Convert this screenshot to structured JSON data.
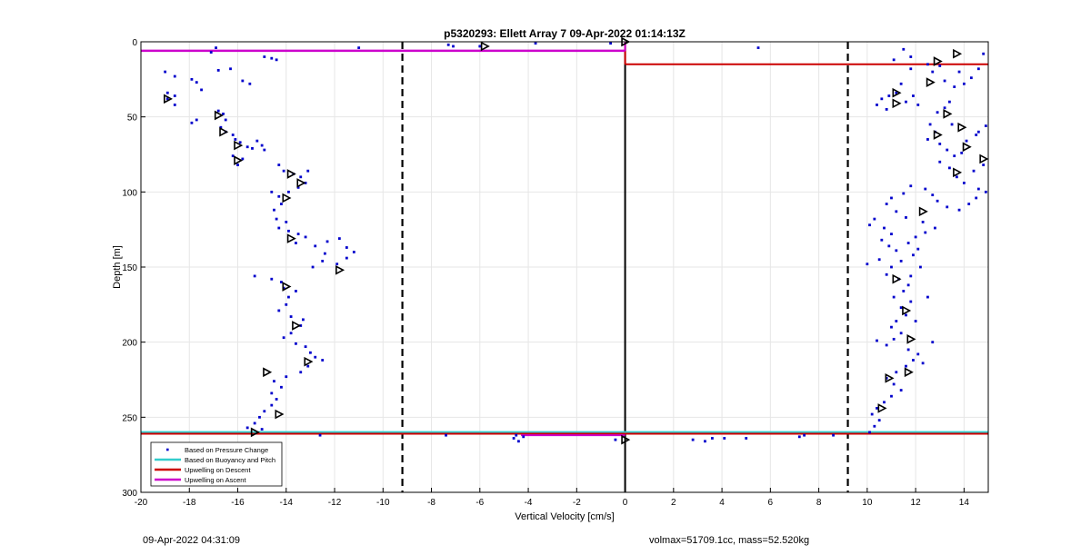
{
  "footer": {
    "timestamp": "09-Apr-2022 04:31:09",
    "mass_info": "volmax=51709.1cc, mass=52.520kg"
  },
  "colors": {
    "pressure": "#0000cc",
    "buoyancy": "#33cccc",
    "descent": "#cc0000",
    "ascent": "#cc00cc",
    "axes": "#000000",
    "grid": "#e6e6e6"
  },
  "chart_data": {
    "type": "scatter",
    "title": "p5320293: Ellett Array 7 09-Apr-2022 01:14:13Z",
    "xlabel": "Vertical Velocity [cm/s]",
    "ylabel": "Depth [m]",
    "xlim": [
      -20,
      15
    ],
    "ylim": [
      0,
      300
    ],
    "y_reversed": true,
    "grid": true,
    "xticks": [
      "-20",
      "-18",
      "-16",
      "-14",
      "-12",
      "-10",
      "-8",
      "-6",
      "-4",
      "-2",
      "0",
      "2",
      "4",
      "6",
      "8",
      "10",
      "12",
      "14"
    ],
    "yticks": [
      "0",
      "50",
      "100",
      "150",
      "200",
      "250",
      "300"
    ],
    "legend": {
      "position": "bottom-left",
      "entries": [
        "Based on Pressure Change",
        "Based on Buoyancy and Pitch",
        "Upwelling on Descent",
        "Upwelling on Ascent"
      ]
    },
    "dashed_lines_x": [
      -9.2,
      9.2
    ],
    "zero_line_x": 0,
    "series": [
      {
        "name": "Based on Pressure Change",
        "marker": "dot",
        "points": [
          [
            -19,
            20
          ],
          [
            -18.6,
            23
          ],
          [
            -18.9,
            34
          ],
          [
            -18.6,
            36
          ],
          [
            -18.9,
            38
          ],
          [
            -18.6,
            42
          ],
          [
            -17.7,
            27
          ],
          [
            -17.5,
            32
          ],
          [
            -17.9,
            25
          ],
          [
            -17.1,
            7
          ],
          [
            -16.9,
            4
          ],
          [
            -16.8,
            19
          ],
          [
            -16.3,
            18
          ],
          [
            -15.8,
            26
          ],
          [
            -15.5,
            28
          ],
          [
            -14.9,
            10
          ],
          [
            -14.6,
            11
          ],
          [
            -14.4,
            12
          ],
          [
            -17.7,
            52
          ],
          [
            -17.9,
            54
          ],
          [
            -16.8,
            46
          ],
          [
            -16.6,
            48
          ],
          [
            -16.5,
            52
          ],
          [
            -16.7,
            57
          ],
          [
            -16.5,
            60
          ],
          [
            -16.2,
            62
          ],
          [
            -16.1,
            65
          ],
          [
            -15.9,
            67
          ],
          [
            -15.6,
            70
          ],
          [
            -15.4,
            71
          ],
          [
            -15.2,
            66
          ],
          [
            -15.0,
            69
          ],
          [
            -14.9,
            72
          ],
          [
            -16.2,
            76
          ],
          [
            -15.8,
            78
          ],
          [
            -16.0,
            82
          ],
          [
            -14.3,
            82
          ],
          [
            -14.1,
            86
          ],
          [
            -13.7,
            88
          ],
          [
            -13.4,
            90
          ],
          [
            -13.1,
            86
          ],
          [
            -13.2,
            94
          ],
          [
            -13.5,
            97
          ],
          [
            -13.9,
            100
          ],
          [
            -14.3,
            103
          ],
          [
            -14.6,
            100
          ],
          [
            -14.2,
            108
          ],
          [
            -14.5,
            112
          ],
          [
            -14.4,
            118
          ],
          [
            -14.0,
            120
          ],
          [
            -14.3,
            124
          ],
          [
            -13.9,
            126
          ],
          [
            -13.5,
            128
          ],
          [
            -13.6,
            134
          ],
          [
            -13.2,
            130
          ],
          [
            -12.8,
            136
          ],
          [
            -12.3,
            133
          ],
          [
            -11.8,
            131
          ],
          [
            -11.5,
            137
          ],
          [
            -11.2,
            140
          ],
          [
            -11.5,
            144
          ],
          [
            -11.9,
            148
          ],
          [
            -12.5,
            146
          ],
          [
            -12.9,
            150
          ],
          [
            -12.4,
            141
          ],
          [
            -15.3,
            156
          ],
          [
            -14.6,
            158
          ],
          [
            -14.2,
            160
          ],
          [
            -14.1,
            164
          ],
          [
            -13.6,
            166
          ],
          [
            -13.9,
            170
          ],
          [
            -14.0,
            175
          ],
          [
            -14.3,
            179
          ],
          [
            -13.8,
            183
          ],
          [
            -13.3,
            185
          ],
          [
            -13.4,
            189
          ],
          [
            -13.8,
            194
          ],
          [
            -14.1,
            197
          ],
          [
            -13.6,
            201
          ],
          [
            -13.2,
            203
          ],
          [
            -13.0,
            207
          ],
          [
            -12.8,
            210
          ],
          [
            -12.5,
            212
          ],
          [
            -13.1,
            216
          ],
          [
            -13.4,
            220
          ],
          [
            -14.0,
            223
          ],
          [
            -14.5,
            226
          ],
          [
            -14.2,
            230
          ],
          [
            -14.6,
            234
          ],
          [
            -14.4,
            238
          ],
          [
            -14.6,
            242
          ],
          [
            -14.9,
            246
          ],
          [
            -15.1,
            250
          ],
          [
            -15.3,
            254
          ],
          [
            -15.0,
            258
          ],
          [
            -15.6,
            257
          ],
          [
            -12.6,
            262
          ],
          [
            -11,
            4
          ],
          [
            -7.1,
            3
          ],
          [
            -7.3,
            2
          ],
          [
            -3.7,
            1
          ],
          [
            -6,
            3
          ],
          [
            -0.6,
            1
          ],
          [
            -4.2,
            263
          ],
          [
            -4.5,
            262
          ],
          [
            -4.6,
            264
          ],
          [
            -4.4,
            266
          ],
          [
            -7.4,
            262
          ],
          [
            -0.4,
            265
          ],
          [
            2.8,
            265
          ],
          [
            3.3,
            266
          ],
          [
            3.6,
            264
          ],
          [
            4.1,
            264
          ],
          [
            5.0,
            264
          ],
          [
            5.5,
            4
          ],
          [
            7.2,
            263
          ],
          [
            7.4,
            262
          ],
          [
            8.6,
            262
          ],
          [
            11.5,
            5
          ],
          [
            11.8,
            10
          ],
          [
            11.1,
            12
          ],
          [
            11.8,
            18
          ],
          [
            12.5,
            15
          ],
          [
            12.7,
            20
          ],
          [
            11.4,
            28
          ],
          [
            11.2,
            34
          ],
          [
            10.9,
            36
          ],
          [
            10.6,
            38
          ],
          [
            10.4,
            42
          ],
          [
            10.8,
            45
          ],
          [
            11.6,
            40
          ],
          [
            11.9,
            36
          ],
          [
            12.1,
            42
          ],
          [
            13.0,
            16
          ],
          [
            13.2,
            26
          ],
          [
            13.6,
            30
          ],
          [
            14.0,
            28
          ],
          [
            13.8,
            20
          ],
          [
            14.3,
            24
          ],
          [
            14.6,
            18
          ],
          [
            14.8,
            8
          ],
          [
            13.4,
            40
          ],
          [
            13.2,
            44
          ],
          [
            12.9,
            47
          ],
          [
            12.6,
            55
          ],
          [
            12.8,
            60
          ],
          [
            12.5,
            65
          ],
          [
            13.0,
            68
          ],
          [
            13.3,
            72
          ],
          [
            13.6,
            76
          ],
          [
            13.9,
            74
          ],
          [
            14.1,
            66
          ],
          [
            14.5,
            62
          ],
          [
            14.9,
            56
          ],
          [
            14.6,
            60
          ],
          [
            13.5,
            55
          ],
          [
            13.0,
            80
          ],
          [
            13.4,
            84
          ],
          [
            13.7,
            90
          ],
          [
            14.0,
            94
          ],
          [
            14.4,
            86
          ],
          [
            14.8,
            82
          ],
          [
            14.6,
            98
          ],
          [
            14.9,
            100
          ],
          [
            14.5,
            104
          ],
          [
            14.2,
            108
          ],
          [
            13.8,
            112
          ],
          [
            13.3,
            110
          ],
          [
            12.9,
            106
          ],
          [
            12.7,
            102
          ],
          [
            12.4,
            98
          ],
          [
            11.8,
            96
          ],
          [
            11.5,
            101
          ],
          [
            11.0,
            104
          ],
          [
            10.8,
            108
          ],
          [
            11.2,
            113
          ],
          [
            11.6,
            117
          ],
          [
            10.3,
            118
          ],
          [
            10.1,
            122
          ],
          [
            10.7,
            124
          ],
          [
            11.0,
            128
          ],
          [
            10.6,
            132
          ],
          [
            10.9,
            136
          ],
          [
            11.2,
            139
          ],
          [
            11.7,
            134
          ],
          [
            12.0,
            130
          ],
          [
            12.4,
            127
          ],
          [
            12.8,
            124
          ],
          [
            12.3,
            120
          ],
          [
            12.1,
            138
          ],
          [
            11.9,
            142
          ],
          [
            11.4,
            146
          ],
          [
            11.0,
            150
          ],
          [
            10.5,
            145
          ],
          [
            10.0,
            148
          ],
          [
            10.8,
            155
          ],
          [
            11.3,
            158
          ],
          [
            11.7,
            162
          ],
          [
            11.5,
            166
          ],
          [
            11.1,
            170
          ],
          [
            11.8,
            173
          ],
          [
            11.4,
            177
          ],
          [
            11.6,
            182
          ],
          [
            11.2,
            186
          ],
          [
            11.0,
            190
          ],
          [
            11.4,
            194
          ],
          [
            11.1,
            198
          ],
          [
            10.8,
            202
          ],
          [
            10.4,
            199
          ],
          [
            11.7,
            205
          ],
          [
            12.1,
            208
          ],
          [
            11.9,
            212
          ],
          [
            11.6,
            216
          ],
          [
            11.2,
            220
          ],
          [
            10.8,
            224
          ],
          [
            11.1,
            228
          ],
          [
            11.4,
            232
          ],
          [
            11.0,
            236
          ],
          [
            10.7,
            240
          ],
          [
            10.4,
            244
          ],
          [
            10.2,
            248
          ],
          [
            10.5,
            252
          ],
          [
            10.3,
            256
          ],
          [
            10.1,
            260
          ],
          [
            12.7,
            200
          ],
          [
            12.3,
            214
          ],
          [
            11.8,
            156
          ],
          [
            12.2,
            150
          ],
          [
            12.5,
            170
          ],
          [
            12.0,
            186
          ]
        ]
      },
      {
        "name": "Based on Buoyancy and Pitch",
        "marker": "triangle",
        "points": [
          [
            -18.9,
            38
          ],
          [
            -16.8,
            49
          ],
          [
            -16.6,
            60
          ],
          [
            -16.0,
            69
          ],
          [
            -16.0,
            79
          ],
          [
            -13.8,
            88
          ],
          [
            -13.4,
            94
          ],
          [
            -14.0,
            104
          ],
          [
            -13.8,
            131
          ],
          [
            -11.8,
            152
          ],
          [
            -14.0,
            163
          ],
          [
            -13.6,
            189
          ],
          [
            -13.1,
            213
          ],
          [
            -14.8,
            220
          ],
          [
            -14.3,
            248
          ],
          [
            -15.3,
            260
          ],
          [
            -5.8,
            3
          ],
          [
            0,
            0
          ],
          [
            0,
            265
          ],
          [
            13.7,
            8
          ],
          [
            12.9,
            13
          ],
          [
            12.6,
            27
          ],
          [
            11.2,
            34
          ],
          [
            11.2,
            41
          ],
          [
            13.3,
            48
          ],
          [
            13.9,
            57
          ],
          [
            12.9,
            62
          ],
          [
            14.1,
            70
          ],
          [
            14.8,
            78
          ],
          [
            13.7,
            87
          ],
          [
            12.3,
            113
          ],
          [
            11.2,
            158
          ],
          [
            11.6,
            179
          ],
          [
            11.8,
            198
          ],
          [
            11.7,
            220
          ],
          [
            10.9,
            224
          ],
          [
            10.6,
            244
          ]
        ]
      }
    ],
    "upwelling_on_descent": {
      "top_depth": 15,
      "bottom_depth": 261,
      "x_low": 0,
      "x_high": 15,
      "x_left": -20
    },
    "upwelling_on_ascent": {
      "top_depth": 6,
      "bottom_depth": 262,
      "x_left": -20,
      "x_right": 0,
      "x_bottom_right": -4.3
    },
    "buoyancy_line_depth": 260
  }
}
